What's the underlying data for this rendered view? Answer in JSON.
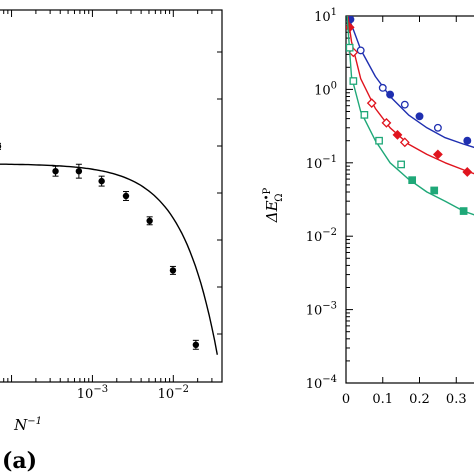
{
  "chart_data": [
    {
      "type": "scatter",
      "panel": "(a)",
      "xlabel": "N^-1",
      "ylabel": "",
      "x_scale": "log",
      "x_ticks": [
        {
          "value": 0.001,
          "label": "10^-3"
        },
        {
          "value": 0.01,
          "label": "10^-2"
        }
      ],
      "xlim": [
        6.8e-05,
        0.04
      ],
      "grid": false,
      "series": [
        {
          "color": "#000000",
          "marker": "filled-circle",
          "error_bars": true,
          "points": [
            {
              "x": 6.8e-05,
              "y": 0.9,
              "err": 0.012
            },
            {
              "x": 0.00035,
              "y": 0.8,
              "err": 0.02
            },
            {
              "x": 0.00068,
              "y": 0.8,
              "err": 0.028
            },
            {
              "x": 0.0013,
              "y": 0.76,
              "err": 0.02
            },
            {
              "x": 0.0026,
              "y": 0.7,
              "err": 0.018
            },
            {
              "x": 0.0051,
              "y": 0.6,
              "err": 0.016
            },
            {
              "x": 0.0099,
              "y": 0.4,
              "err": 0.016
            },
            {
              "x": 0.019,
              "y": 0.1,
              "err": 0.018
            }
          ]
        }
      ],
      "fit_curve": {
        "color": "#000000",
        "x_end": 0.035
      }
    },
    {
      "type": "line",
      "ylabel": "ΔE_Ω^•P",
      "y_scale": "log",
      "ylim": [
        0.0001,
        10
      ],
      "y_ticks": [
        {
          "value": 10,
          "label": "10^1"
        },
        {
          "value": 1,
          "label": "10^0"
        },
        {
          "value": 0.1,
          "label": "10^-1"
        },
        {
          "value": 0.01,
          "label": "10^-2"
        },
        {
          "value": 0.001,
          "label": "10^-3"
        },
        {
          "value": 0.0001,
          "label": "10^-4"
        }
      ],
      "xlim": [
        0,
        0.37
      ],
      "x_ticks": [
        {
          "value": 0,
          "label": "0"
        },
        {
          "value": 0.1,
          "label": "0.1"
        },
        {
          "value": 0.2,
          "label": "0.2"
        },
        {
          "value": 0.3,
          "label": "0.3"
        }
      ],
      "grid": false,
      "series": [
        {
          "color": "#1f2fb0",
          "curve": [
            [
              0.005,
              10
            ],
            [
              0.02,
              6.5
            ],
            [
              0.04,
              3.5
            ],
            [
              0.08,
              1.5
            ],
            [
              0.12,
              0.8
            ],
            [
              0.17,
              0.45
            ],
            [
              0.22,
              0.3
            ],
            [
              0.27,
              0.22
            ],
            [
              0.32,
              0.18
            ],
            [
              0.37,
              0.15
            ]
          ],
          "open_points": [
            [
              0.04,
              3.4
            ],
            [
              0.1,
              1.05
            ],
            [
              0.16,
              0.62
            ],
            [
              0.25,
              0.3
            ]
          ],
          "filled_points": [
            [
              0.012,
              9
            ],
            [
              0.12,
              0.85
            ],
            [
              0.2,
              0.43
            ],
            [
              0.33,
              0.2
            ]
          ],
          "open_marker": "circle",
          "filled_marker": "circle"
        },
        {
          "color": "#e0141e",
          "curve": [
            [
              0.005,
              10
            ],
            [
              0.015,
              4.5
            ],
            [
              0.04,
              1.4
            ],
            [
              0.08,
              0.55
            ],
            [
              0.12,
              0.3
            ],
            [
              0.17,
              0.18
            ],
            [
              0.22,
              0.13
            ],
            [
              0.27,
              0.1
            ],
            [
              0.32,
              0.08
            ],
            [
              0.37,
              0.065
            ]
          ],
          "open_points": [
            [
              0.02,
              3.2
            ],
            [
              0.07,
              0.65
            ],
            [
              0.11,
              0.35
            ],
            [
              0.16,
              0.19
            ]
          ],
          "filled_points": [
            [
              0.01,
              7
            ],
            [
              0.14,
              0.24
            ],
            [
              0.25,
              0.13
            ],
            [
              0.33,
              0.075
            ]
          ],
          "open_marker": "diamond",
          "filled_marker": "diamond"
        },
        {
          "color": "#1fa878",
          "curve": [
            [
              0.003,
              10
            ],
            [
              0.015,
              1.5
            ],
            [
              0.04,
              0.5
            ],
            [
              0.08,
              0.2
            ],
            [
              0.12,
              0.1
            ],
            [
              0.17,
              0.06
            ],
            [
              0.22,
              0.04
            ],
            [
              0.27,
              0.03
            ],
            [
              0.32,
              0.022
            ],
            [
              0.37,
              0.018
            ]
          ],
          "open_points": [
            [
              0.01,
              3.7
            ],
            [
              0.02,
              1.3
            ],
            [
              0.05,
              0.45
            ],
            [
              0.09,
              0.2
            ],
            [
              0.15,
              0.095
            ]
          ],
          "filled_points": [
            [
              0.18,
              0.058
            ],
            [
              0.24,
              0.042
            ],
            [
              0.32,
              0.022
            ]
          ],
          "open_marker": "square",
          "filled_marker": "square"
        }
      ]
    }
  ]
}
